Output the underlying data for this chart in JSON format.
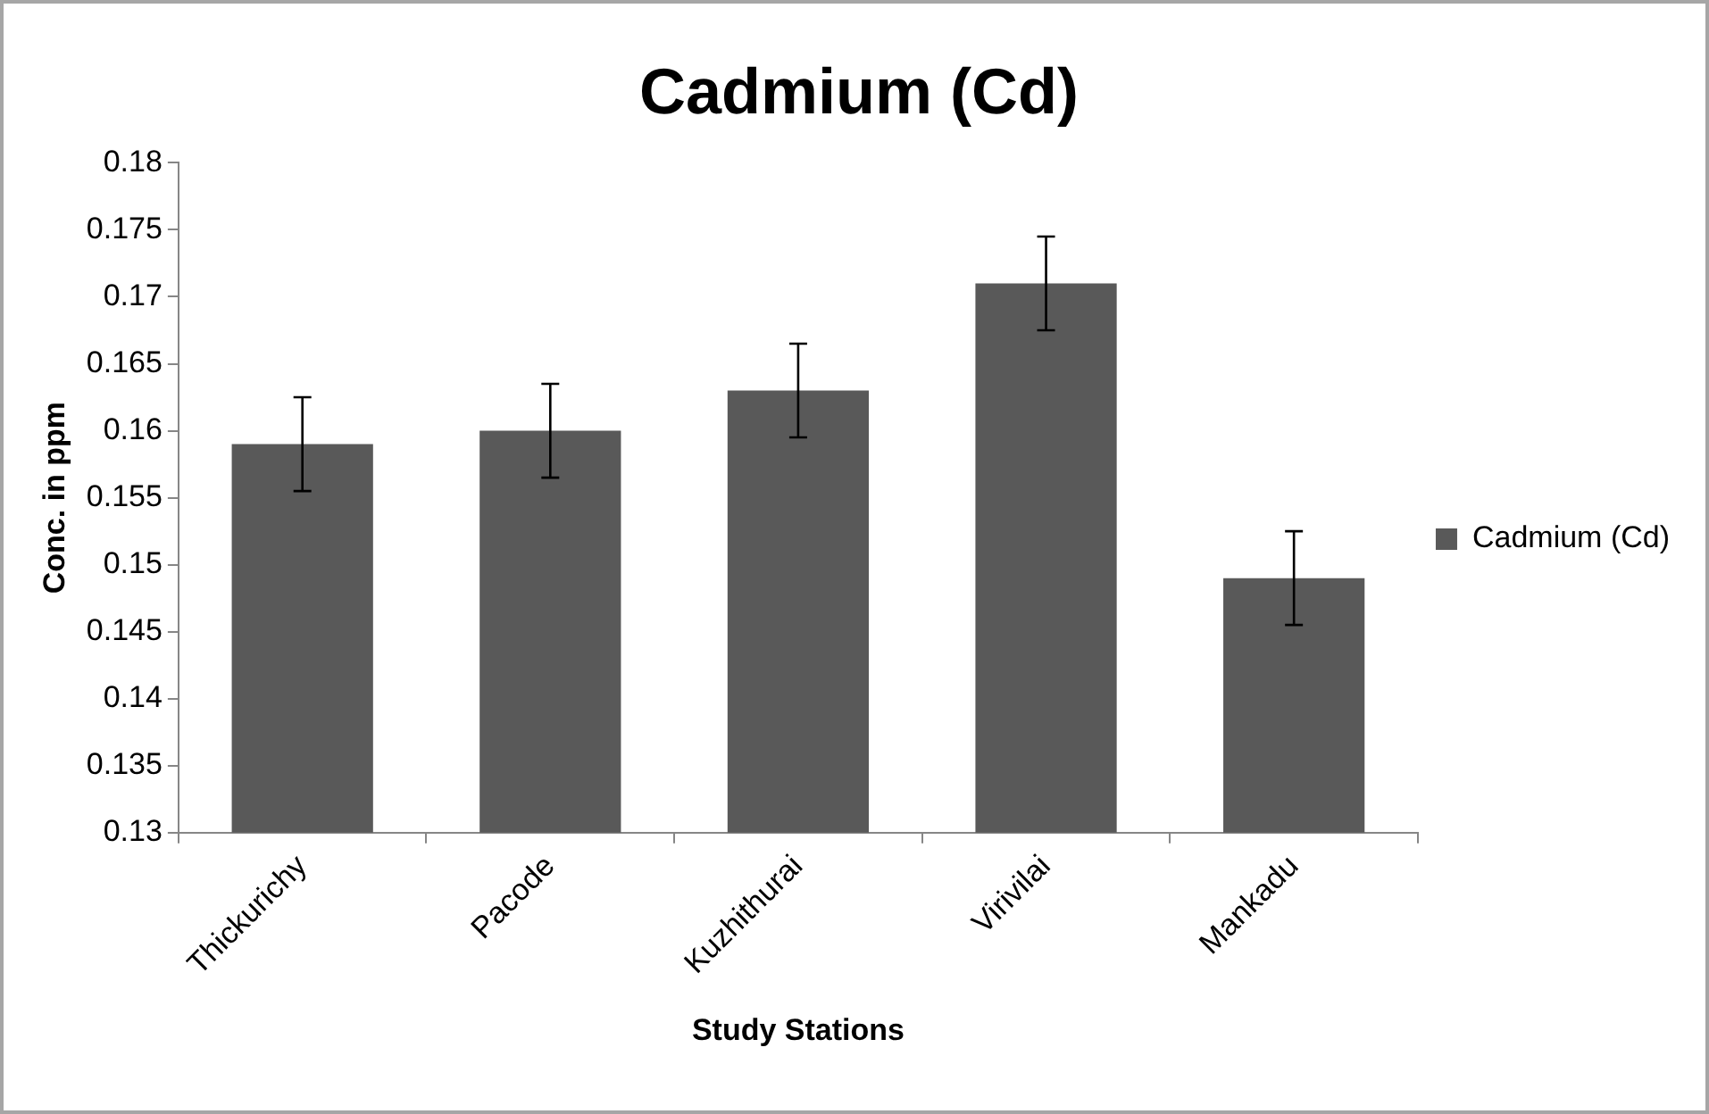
{
  "chart_data": {
    "type": "bar",
    "title": "Cadmium (Cd)",
    "xlabel": "Study Stations",
    "ylabel": "Conc. in ppm",
    "categories": [
      "Thickurichy",
      "Pacode",
      "Kuzhithurai",
      "Virivilai",
      "Mankadu"
    ],
    "series": [
      {
        "name": "Cadmium (Cd)",
        "color": "#595959",
        "values": [
          0.159,
          0.16,
          0.163,
          0.171,
          0.149
        ],
        "errors": [
          0.0035,
          0.0035,
          0.0035,
          0.0035,
          0.0035
        ]
      }
    ],
    "ylim": [
      0.13,
      0.18
    ],
    "yticks": [
      0.13,
      0.135,
      0.14,
      0.145,
      0.15,
      0.155,
      0.16,
      0.165,
      0.17,
      0.175,
      0.18
    ],
    "grid": false,
    "legend": "right"
  }
}
